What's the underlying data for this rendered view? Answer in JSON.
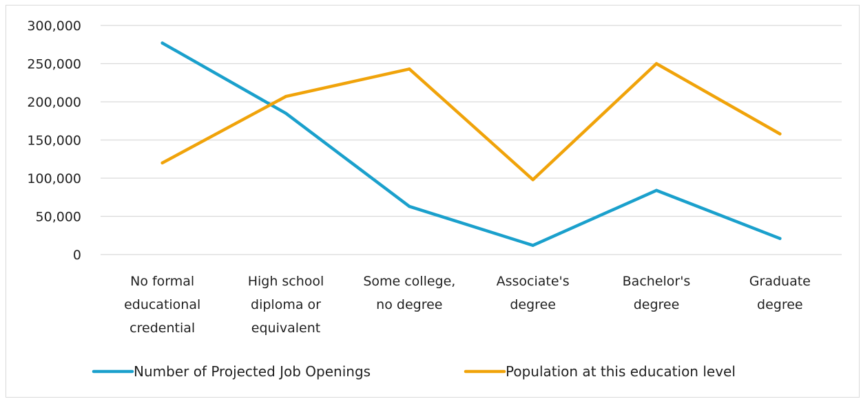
{
  "chart_data": {
    "type": "line",
    "categories": [
      [
        "No formal",
        "educational",
        "credential"
      ],
      [
        "High school",
        "diploma or",
        "equivalent"
      ],
      [
        "Some college,",
        "no degree"
      ],
      [
        "Associate's",
        "degree"
      ],
      [
        "Bachelor's",
        "degree"
      ],
      [
        "Graduate",
        "degree"
      ]
    ],
    "series": [
      {
        "name": "Number of Projected Job Openings",
        "color": "#1aa0cc",
        "values": [
          277000,
          185000,
          63000,
          12000,
          84000,
          21000
        ]
      },
      {
        "name": "Population at this education level",
        "color": "#f0a30a",
        "values": [
          120000,
          207000,
          243000,
          98000,
          250000,
          158000
        ]
      }
    ],
    "ylim": [
      0,
      300000
    ],
    "yticks": [
      {
        "value": 0,
        "label": "0"
      },
      {
        "value": 50000,
        "label": "50,000"
      },
      {
        "value": 100000,
        "label": "100,000"
      },
      {
        "value": 150000,
        "label": "150,000"
      },
      {
        "value": 200000,
        "label": "200,000"
      },
      {
        "value": 250000,
        "label": "250,000"
      },
      {
        "value": 300000,
        "label": "300,000"
      }
    ],
    "grid": true,
    "legend_position": "bottom",
    "gridline_color": "#d9d9d9"
  }
}
